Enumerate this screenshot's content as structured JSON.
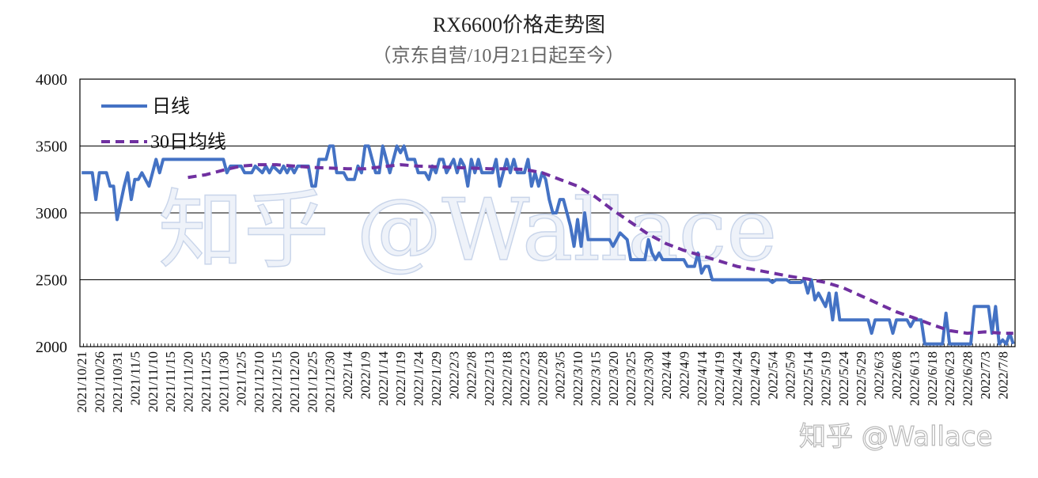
{
  "watermark": {
    "main": "知乎 @Wallace",
    "corner": "知乎 @Wallace"
  },
  "chart_data": {
    "type": "line",
    "title": "RX6600价格走势图",
    "subtitle": "（京东自营/10月21日起至今）",
    "ylim": [
      2000,
      4000
    ],
    "yticks": [
      2000,
      2500,
      3000,
      3500,
      4000
    ],
    "grid": true,
    "legend_position": "top-left",
    "x_start_date": "2021-10-21",
    "x_end_date": "2022-07-11",
    "x_tick_labels": [
      "2021/10/21",
      "2021/10/26",
      "2021/10/31",
      "2021/11/5",
      "2021/11/10",
      "2021/11/15",
      "2021/11/20",
      "2021/11/25",
      "2021/11/30",
      "2021/12/5",
      "2021/12/10",
      "2021/12/15",
      "2021/12/20",
      "2021/12/25",
      "2021/12/30",
      "2022/1/4",
      "2022/1/9",
      "2022/1/14",
      "2022/1/19",
      "2022/1/24",
      "2022/1/29",
      "2022/2/3",
      "2022/2/8",
      "2022/2/13",
      "2022/2/18",
      "2022/2/23",
      "2022/2/28",
      "2022/3/5",
      "2022/3/10",
      "2022/3/15",
      "2022/3/20",
      "2022/3/25",
      "2022/3/30",
      "2022/4/4",
      "2022/4/9",
      "2022/4/14",
      "2022/4/19",
      "2022/4/24",
      "2022/4/29",
      "2022/5/4",
      "2022/5/9",
      "2022/5/14",
      "2022/5/19",
      "2022/5/24",
      "2022/5/29",
      "2022/6/3",
      "2022/6/8",
      "2022/6/13",
      "2022/6/18",
      "2022/6/23",
      "2022/6/28",
      "2022/7/3",
      "2022/7/8"
    ],
    "series": [
      {
        "name": "日线",
        "color": "#4472c4",
        "style": "solid",
        "points": [
          [
            "2021/10/21",
            3300
          ],
          [
            "2021/10/24",
            3300
          ],
          [
            "2021/10/25",
            3100
          ],
          [
            "2021/10/26",
            3300
          ],
          [
            "2021/10/28",
            3300
          ],
          [
            "2021/10/29",
            3200
          ],
          [
            "2021/10/30",
            3200
          ],
          [
            "2021/10/31",
            2950
          ],
          [
            "2021/11/2",
            3200
          ],
          [
            "2021/11/3",
            3300
          ],
          [
            "2021/11/4",
            3100
          ],
          [
            "2021/11/5",
            3250
          ],
          [
            "2021/11/6",
            3250
          ],
          [
            "2021/11/7",
            3300
          ],
          [
            "2021/11/9",
            3200
          ],
          [
            "2021/11/11",
            3400
          ],
          [
            "2021/11/12",
            3300
          ],
          [
            "2021/11/13",
            3400
          ],
          [
            "2021/11/30",
            3400
          ],
          [
            "2021/12/1",
            3300
          ],
          [
            "2021/12/2",
            3350
          ],
          [
            "2021/12/5",
            3350
          ],
          [
            "2021/12/6",
            3300
          ],
          [
            "2021/12/8",
            3300
          ],
          [
            "2021/12/9",
            3350
          ],
          [
            "2021/12/11",
            3300
          ],
          [
            "2021/12/12",
            3350
          ],
          [
            "2021/12/13",
            3300
          ],
          [
            "2021/12/14",
            3350
          ],
          [
            "2021/12/16",
            3300
          ],
          [
            "2021/12/17",
            3350
          ],
          [
            "2021/12/18",
            3300
          ],
          [
            "2021/12/19",
            3350
          ],
          [
            "2021/12/20",
            3300
          ],
          [
            "2021/12/21",
            3350
          ],
          [
            "2021/12/24",
            3350
          ],
          [
            "2021/12/25",
            3200
          ],
          [
            "2021/12/26",
            3200
          ],
          [
            "2021/12/27",
            3400
          ],
          [
            "2021/12/29",
            3400
          ],
          [
            "2021/12/30",
            3500
          ],
          [
            "2021/12/31",
            3500
          ],
          [
            "2022/1/1",
            3300
          ],
          [
            "2022/1/3",
            3300
          ],
          [
            "2022/1/4",
            3250
          ],
          [
            "2022/1/6",
            3250
          ],
          [
            "2022/1/7",
            3350
          ],
          [
            "2022/1/8",
            3300
          ],
          [
            "2022/1/9",
            3500
          ],
          [
            "2022/1/10",
            3500
          ],
          [
            "2022/1/11",
            3400
          ],
          [
            "2022/1/12",
            3300
          ],
          [
            "2022/1/13",
            3300
          ],
          [
            "2022/1/14",
            3500
          ],
          [
            "2022/1/15",
            3400
          ],
          [
            "2022/1/16",
            3300
          ],
          [
            "2022/1/17",
            3400
          ],
          [
            "2022/1/18",
            3500
          ],
          [
            "2022/1/19",
            3450
          ],
          [
            "2022/1/20",
            3500
          ],
          [
            "2022/1/21",
            3400
          ],
          [
            "2022/1/23",
            3400
          ],
          [
            "2022/1/24",
            3300
          ],
          [
            "2022/1/26",
            3300
          ],
          [
            "2022/1/27",
            3250
          ],
          [
            "2022/1/28",
            3350
          ],
          [
            "2022/1/29",
            3300
          ],
          [
            "2022/1/30",
            3400
          ],
          [
            "2022/1/31",
            3400
          ],
          [
            "2022/2/1",
            3300
          ],
          [
            "2022/2/2",
            3350
          ],
          [
            "2022/2/3",
            3400
          ],
          [
            "2022/2/4",
            3300
          ],
          [
            "2022/2/5",
            3400
          ],
          [
            "2022/2/6",
            3350
          ],
          [
            "2022/2/7",
            3200
          ],
          [
            "2022/2/8",
            3400
          ],
          [
            "2022/2/9",
            3300
          ],
          [
            "2022/2/10",
            3400
          ],
          [
            "2022/2/11",
            3300
          ],
          [
            "2022/2/14",
            3300
          ],
          [
            "2022/2/15",
            3400
          ],
          [
            "2022/2/16",
            3200
          ],
          [
            "2022/2/17",
            3300
          ],
          [
            "2022/2/18",
            3400
          ],
          [
            "2022/2/19",
            3300
          ],
          [
            "2022/2/20",
            3400
          ],
          [
            "2022/2/21",
            3300
          ],
          [
            "2022/2/23",
            3300
          ],
          [
            "2022/2/24",
            3400
          ],
          [
            "2022/2/25",
            3200
          ],
          [
            "2022/2/26",
            3300
          ],
          [
            "2022/2/27",
            3200
          ],
          [
            "2022/2/28",
            3300
          ],
          [
            "2022/3/1",
            3250
          ],
          [
            "2022/3/2",
            3100
          ],
          [
            "2022/3/3",
            3000
          ],
          [
            "2022/3/4",
            3000
          ],
          [
            "2022/3/5",
            3100
          ],
          [
            "2022/3/6",
            3100
          ],
          [
            "2022/3/7",
            3000
          ],
          [
            "2022/3/8",
            2900
          ],
          [
            "2022/3/9",
            2750
          ],
          [
            "2022/3/10",
            2950
          ],
          [
            "2022/3/11",
            2750
          ],
          [
            "2022/3/12",
            3000
          ],
          [
            "2022/3/13",
            2800
          ],
          [
            "2022/3/19",
            2800
          ],
          [
            "2022/3/20",
            2750
          ],
          [
            "2022/3/21",
            2800
          ],
          [
            "2022/3/22",
            2850
          ],
          [
            "2022/3/24",
            2800
          ],
          [
            "2022/3/25",
            2650
          ],
          [
            "2022/3/29",
            2650
          ],
          [
            "2022/3/30",
            2800
          ],
          [
            "2022/3/31",
            2700
          ],
          [
            "2022/4/1",
            2650
          ],
          [
            "2022/4/2",
            2700
          ],
          [
            "2022/4/3",
            2650
          ],
          [
            "2022/4/9",
            2650
          ],
          [
            "2022/4/10",
            2600
          ],
          [
            "2022/4/12",
            2600
          ],
          [
            "2022/4/13",
            2700
          ],
          [
            "2022/4/14",
            2550
          ],
          [
            "2022/4/15",
            2600
          ],
          [
            "2022/4/16",
            2600
          ],
          [
            "2022/4/17",
            2500
          ],
          [
            "2022/5/3",
            2500
          ],
          [
            "2022/5/4",
            2480
          ],
          [
            "2022/5/5",
            2500
          ],
          [
            "2022/5/8",
            2500
          ],
          [
            "2022/5/9",
            2480
          ],
          [
            "2022/5/12",
            2480
          ],
          [
            "2022/5/13",
            2500
          ],
          [
            "2022/5/14",
            2400
          ],
          [
            "2022/5/15",
            2500
          ],
          [
            "2022/5/16",
            2350
          ],
          [
            "2022/5/17",
            2400
          ],
          [
            "2022/5/18",
            2350
          ],
          [
            "2022/5/19",
            2300
          ],
          [
            "2022/5/20",
            2400
          ],
          [
            "2022/5/21",
            2200
          ],
          [
            "2022/5/22",
            2400
          ],
          [
            "2022/5/23",
            2200
          ],
          [
            "2022/5/31",
            2200
          ],
          [
            "2022/6/1",
            2100
          ],
          [
            "2022/6/2",
            2200
          ],
          [
            "2022/6/6",
            2200
          ],
          [
            "2022/6/7",
            2100
          ],
          [
            "2022/6/8",
            2200
          ],
          [
            "2022/6/11",
            2200
          ],
          [
            "2022/6/12",
            2150
          ],
          [
            "2022/6/13",
            2200
          ],
          [
            "2022/6/15",
            2200
          ],
          [
            "2022/6/16",
            2020
          ],
          [
            "2022/6/21",
            2020
          ],
          [
            "2022/6/22",
            2250
          ],
          [
            "2022/6/23",
            2020
          ],
          [
            "2022/6/29",
            2020
          ],
          [
            "2022/6/30",
            2300
          ],
          [
            "2022/7/4",
            2300
          ],
          [
            "2022/7/5",
            2100
          ],
          [
            "2022/7/6",
            2300
          ],
          [
            "2022/7/7",
            2020
          ],
          [
            "2022/7/8",
            2050
          ],
          [
            "2022/7/9",
            2020
          ],
          [
            "2022/7/10",
            2100
          ],
          [
            "2022/7/11",
            2020
          ]
        ]
      },
      {
        "name": "30日均线",
        "color": "#7030a0",
        "style": "dashed",
        "points": [
          [
            "2021/11/20",
            3265
          ],
          [
            "2021/11/25",
            3285
          ],
          [
            "2021/11/30",
            3320
          ],
          [
            "2021/12/5",
            3350
          ],
          [
            "2021/12/10",
            3360
          ],
          [
            "2021/12/15",
            3360
          ],
          [
            "2021/12/20",
            3350
          ],
          [
            "2021/12/25",
            3340
          ],
          [
            "2021/12/30",
            3335
          ],
          [
            "2022/1/4",
            3330
          ],
          [
            "2022/1/9",
            3330
          ],
          [
            "2022/1/14",
            3345
          ],
          [
            "2022/1/19",
            3360
          ],
          [
            "2022/1/24",
            3350
          ],
          [
            "2022/1/29",
            3345
          ],
          [
            "2022/2/3",
            3340
          ],
          [
            "2022/2/8",
            3335
          ],
          [
            "2022/2/13",
            3330
          ],
          [
            "2022/2/18",
            3330
          ],
          [
            "2022/2/23",
            3325
          ],
          [
            "2022/2/28",
            3300
          ],
          [
            "2022/3/5",
            3250
          ],
          [
            "2022/3/10",
            3200
          ],
          [
            "2022/3/15",
            3120
          ],
          [
            "2022/3/20",
            3020
          ],
          [
            "2022/3/25",
            2930
          ],
          [
            "2022/3/30",
            2840
          ],
          [
            "2022/4/4",
            2770
          ],
          [
            "2022/4/9",
            2720
          ],
          [
            "2022/4/14",
            2680
          ],
          [
            "2022/4/19",
            2640
          ],
          [
            "2022/4/24",
            2600
          ],
          [
            "2022/4/29",
            2575
          ],
          [
            "2022/5/4",
            2550
          ],
          [
            "2022/5/9",
            2525
          ],
          [
            "2022/5/14",
            2505
          ],
          [
            "2022/5/19",
            2480
          ],
          [
            "2022/5/24",
            2440
          ],
          [
            "2022/5/29",
            2380
          ],
          [
            "2022/6/3",
            2320
          ],
          [
            "2022/6/8",
            2260
          ],
          [
            "2022/6/13",
            2215
          ],
          [
            "2022/6/18",
            2165
          ],
          [
            "2022/6/23",
            2120
          ],
          [
            "2022/6/28",
            2100
          ],
          [
            "2022/7/3",
            2110
          ],
          [
            "2022/7/8",
            2100
          ],
          [
            "2022/7/11",
            2100
          ]
        ]
      }
    ]
  }
}
